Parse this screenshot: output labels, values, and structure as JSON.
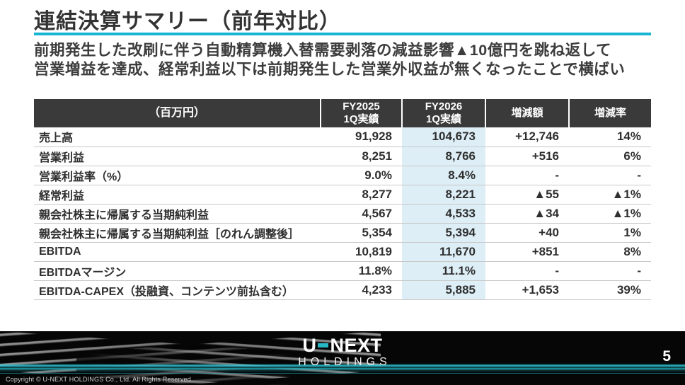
{
  "slide": {
    "title": "連結決算サマリー（前年対比）",
    "message_line1": "前期発生した改刷に伴う自動精算機入替需要剥落の減益影響▲10億円を跳ね返して",
    "message_line2": "営業増益を達成、経常利益以下は前期発生した営業外収益が無くなったことで横ばい",
    "page_number": "5",
    "copyright": "Copyright © U-NEXT HOLDINGS Co., Ltd. All Rights Reserved."
  },
  "logo": {
    "part1": "U",
    "part2": "NEXT",
    "sub": "HOLDINGS",
    "dash_icon": "teal-dash"
  },
  "colors": {
    "accent_teal": "#17b4d3",
    "logo_dash_teal": "#27b8c6",
    "header_bg": "#3a3a3a",
    "fy2026_highlight": "#ddeef6",
    "row_border": "#c8c8c8",
    "footer_bg": "#060606"
  },
  "table": {
    "headers": {
      "unit": "（百万円）",
      "fy2025_line1": "FY2025",
      "fy2025_line2": "1Q実績",
      "fy2026_line1": "FY2026",
      "fy2026_line2": "1Q実績",
      "change": "増減額",
      "rate": "増減率"
    },
    "rows": [
      {
        "label": "売上高",
        "fy2025": "91,928",
        "fy2026": "104,673",
        "change": "+12,746",
        "rate": "14%"
      },
      {
        "label": "営業利益",
        "fy2025": "8,251",
        "fy2026": "8,766",
        "change": "+516",
        "rate": "6%"
      },
      {
        "label": "営業利益率（%）",
        "fy2025": "9.0%",
        "fy2026": "8.4%",
        "change": "-",
        "rate": "-"
      },
      {
        "label": "経常利益",
        "fy2025": "8,277",
        "fy2026": "8,221",
        "change": "▲55",
        "rate": "▲1%"
      },
      {
        "label": "親会社株主に帰属する当期純利益",
        "fy2025": "4,567",
        "fy2026": "4,533",
        "change": "▲34",
        "rate": "▲1%"
      },
      {
        "label": "親会社株主に帰属する当期純利益［のれん調整後］",
        "fy2025": "5,354",
        "fy2026": "5,394",
        "change": "+40",
        "rate": "1%"
      },
      {
        "label": "EBITDA",
        "fy2025": "10,819",
        "fy2026": "11,670",
        "change": "+851",
        "rate": "8%"
      },
      {
        "label": "EBITDAマージン",
        "fy2025": "11.8%",
        "fy2026": "11.1%",
        "change": "-",
        "rate": "-"
      },
      {
        "label": "EBITDA-CAPEX（投融資、コンテンツ前払含む）",
        "fy2025": "4,233",
        "fy2026": "5,885",
        "change": "+1,653",
        "rate": "39%"
      }
    ]
  }
}
